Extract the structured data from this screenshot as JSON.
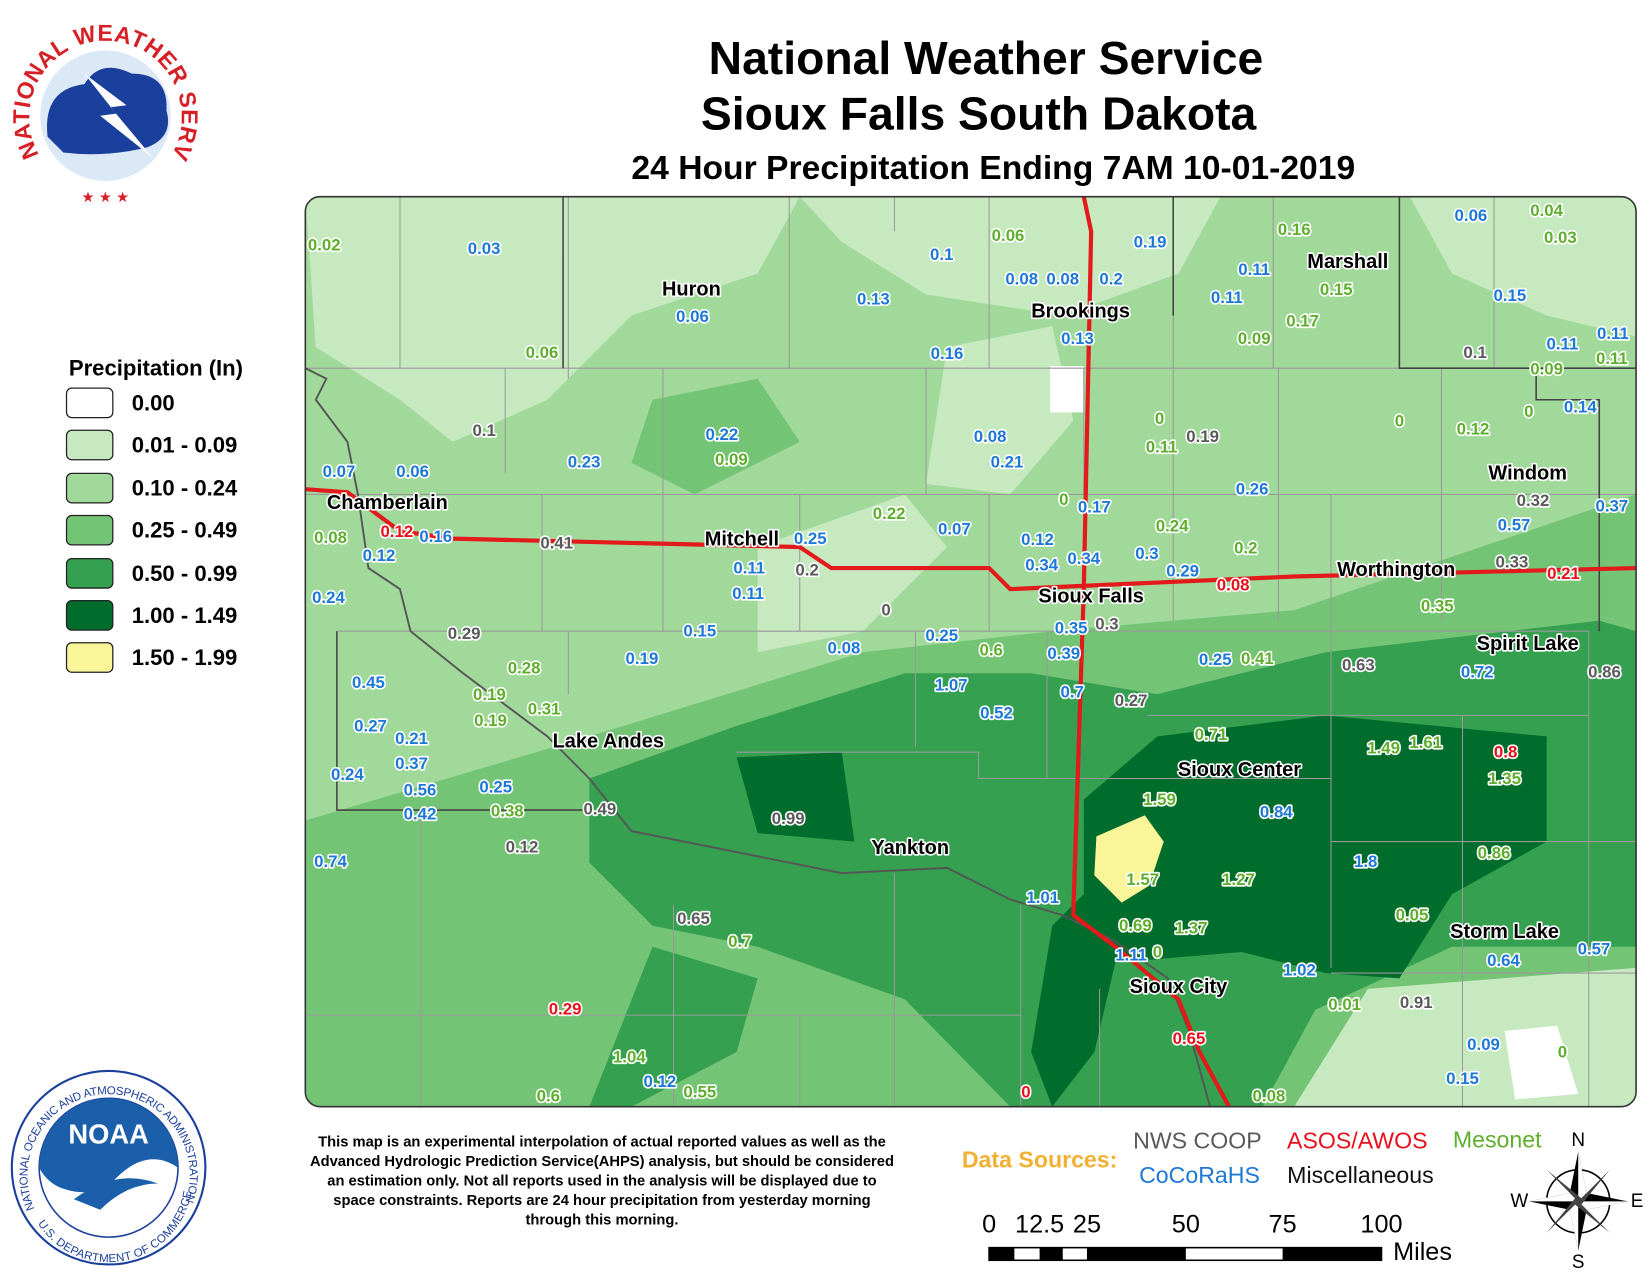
{
  "header": {
    "title": "National Weather Service",
    "subtitle": "Sioux Falls South Dakota",
    "period": "24 Hour Precipitation Ending 7AM 10-01-2019"
  },
  "logos": {
    "nws": "NATIONAL WEATHER SERVICE",
    "noaa_outer": "NATIONAL OCEANIC AND ATMOSPHERIC ADMINISTRATION",
    "noaa_name": "NOAA",
    "noaa_dept": "U.S. DEPARTMENT OF COMMERCE"
  },
  "legend": {
    "title": "Precipitation (In)",
    "items": [
      {
        "label": "0.00",
        "color": "#ffffff"
      },
      {
        "label": "0.01 - 0.09",
        "color": "#c7e9c0"
      },
      {
        "label": "0.10 - 0.24",
        "color": "#a1d99b"
      },
      {
        "label": "0.25 - 0.49",
        "color": "#74c476"
      },
      {
        "label": "0.50 - 0.99",
        "color": "#34a050"
      },
      {
        "label": "1.00 - 1.49",
        "color": "#006d2c"
      },
      {
        "label": "1.50 - 1.99",
        "color": "#fbf59a"
      }
    ]
  },
  "cities": [
    "Huron",
    "Brookings",
    "Marshall",
    "Chamberlain",
    "Mitchell",
    "Windom",
    "Worthington",
    "Sioux Falls",
    "Spirit Lake",
    "Lake Andes",
    "Sioux Center",
    "Yankton",
    "Storm Lake",
    "Sioux City"
  ],
  "data_sources": {
    "title": "Data Sources:",
    "items": [
      {
        "name": "NWS COOP",
        "color": "#5a5a5a",
        "reports": [
          "0.1",
          "0.19",
          "0.1",
          "0.32",
          "0.33",
          "0.41",
          "0.2",
          "0",
          "0.29",
          "0.3",
          "0.63",
          "0.86",
          "0.27",
          "0.49",
          "0.99",
          "0.12",
          "0.65",
          "0.91"
        ]
      },
      {
        "name": "ASOS/AWOS",
        "color": "#e8101b",
        "reports": [
          "0.12",
          "0.08",
          "0.21",
          "0.8",
          "0.29",
          "0.65",
          "0"
        ]
      },
      {
        "name": "Mesonet",
        "color": "#5fae2e",
        "reports": [
          "0.02",
          "0.06",
          "0.16",
          "0.04",
          "0.03",
          "0.15",
          "0.17",
          "0.09",
          "0.06",
          "0.09",
          "0.11",
          "0.09",
          "0",
          "0.11",
          "0",
          "0.12",
          "0",
          "0",
          "0.22",
          "0.24",
          "0.2",
          "0.08",
          "0.35",
          "0.28",
          "0.6",
          "0.41",
          "0.19",
          "0.31",
          "0.19",
          "0.71",
          "1.35",
          "1.59",
          "0.38",
          "1.57",
          "1.27",
          "0.86",
          "0.05",
          "0.69",
          "1.37",
          "0",
          "0.7",
          "0.01",
          "0",
          "1.04",
          "0.55",
          "0.6",
          "0.08",
          "1.49",
          "1.61"
        ]
      },
      {
        "name": "CoCoRaHS",
        "color": "#1e78d7",
        "reports": [
          "0.03",
          "0.1",
          "0.19",
          "0.06",
          "0.08",
          "0.08",
          "0.2",
          "0.11",
          "0.11",
          "0.06",
          "0.13",
          "0.13",
          "0.15",
          "0.16",
          "0.11",
          "0.11",
          "0.22",
          "0.08",
          "0.21",
          "0.14",
          "0.23",
          "0.07",
          "0.06",
          "0.26",
          "0.17",
          "0.07",
          "0.57",
          "0.37",
          "0.25",
          "0.12",
          "0.16",
          "0.12",
          "0.34",
          "0.34",
          "0.3",
          "0.29",
          "0.11",
          "0.11",
          "0.24",
          "0.15",
          "0.08",
          "0.25",
          "0.35",
          "0.19",
          "0.39",
          "0.25",
          "0.72",
          "0.45",
          "1.07",
          "0.7",
          "0.52",
          "0.27",
          "0.21",
          "0.37",
          "0.24",
          "0.56",
          "0.25",
          "0.42",
          "0.84",
          "0.74",
          "1.8",
          "1.01",
          "1.11",
          "1.02",
          "0.64",
          "0.57",
          "0.09",
          "0.15",
          "0.12"
        ]
      },
      {
        "name": "Miscellaneous",
        "color": "#111111"
      }
    ]
  },
  "disclaimer": [
    "This map is an experimental interpolation of actual reported values as well as the",
    "Advanced Hydrologic Prediction Service(AHPS) analysis, but should be considered",
    "an estimation only. Not all reports used in the analysis will be displayed due to",
    "space constraints. Reports are 24 hour precipitation from yesterday morning",
    "through this morning."
  ],
  "scale_bar": {
    "labels": [
      "0",
      "12.5",
      "25",
      "50",
      "75",
      "100"
    ],
    "unit": "Miles"
  },
  "compass": {
    "n": "N",
    "e": "E",
    "s": "S",
    "w": "W"
  }
}
